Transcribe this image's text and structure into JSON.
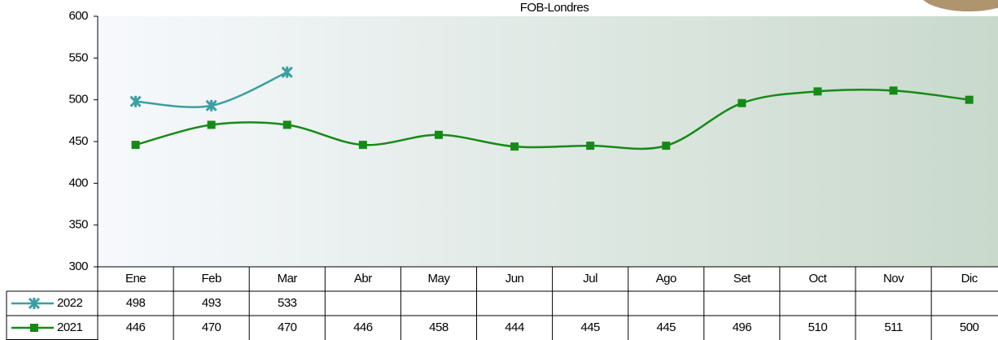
{
  "chart_data": {
    "type": "line",
    "title": "FOB-Londres",
    "categories": [
      "Ene",
      "Feb",
      "Mar",
      "Abr",
      "May",
      "Jun",
      "Jul",
      "Ago",
      "Set",
      "Oct",
      "Nov",
      "Dic"
    ],
    "series": [
      {
        "name": "2022",
        "color": "#3a9fa3",
        "marker": "x",
        "values": [
          498,
          493,
          533,
          null,
          null,
          null,
          null,
          null,
          null,
          null,
          null,
          null
        ]
      },
      {
        "name": "2021",
        "color": "#168a16",
        "marker": "square",
        "values": [
          446,
          470,
          470,
          446,
          458,
          444,
          445,
          445,
          496,
          510,
          511,
          500
        ]
      }
    ],
    "ylim": [
      300,
      600
    ],
    "yticks": [
      300,
      350,
      400,
      450,
      500,
      550,
      600
    ],
    "grid": false,
    "smooth": true,
    "data_table": true
  }
}
